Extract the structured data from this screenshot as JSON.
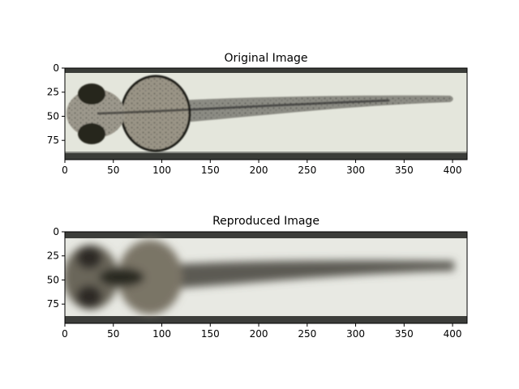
{
  "figure": {
    "panels": [
      {
        "title": "Original Image"
      },
      {
        "title": "Reproduced Image"
      }
    ]
  },
  "chart_data": [
    {
      "type": "image",
      "title": "Original Image",
      "xlabel": "",
      "ylabel": "",
      "xlim": [
        0,
        415
      ],
      "ylim": [
        95,
        0
      ],
      "xticks": [
        0,
        50,
        100,
        150,
        200,
        250,
        300,
        350,
        400
      ],
      "yticks": [
        0,
        25,
        50,
        75
      ],
      "image": {
        "subject": "zebrafish larva, dorsal view, in capillary tube",
        "clarity": "sharp",
        "tube_color": "#e4e6dc",
        "edge_color": "#3a3c38"
      }
    },
    {
      "type": "image",
      "title": "Reproduced Image",
      "xlabel": "",
      "ylabel": "",
      "xlim": [
        0,
        415
      ],
      "ylim": [
        95,
        0
      ],
      "xticks": [
        0,
        50,
        100,
        150,
        200,
        250,
        300,
        350,
        400
      ],
      "yticks": [
        0,
        25,
        50,
        75
      ],
      "image": {
        "subject": "zebrafish larva, dorsal view, in capillary tube",
        "clarity": "blurred",
        "tube_color": "#e8e9e3",
        "edge_color": "#3c3d3a"
      }
    }
  ]
}
